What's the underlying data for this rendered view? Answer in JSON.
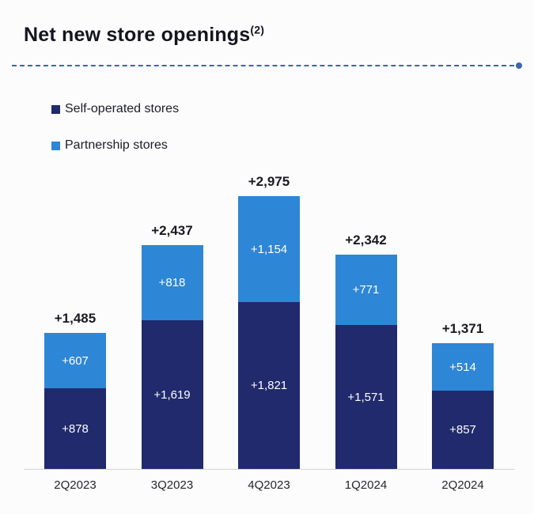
{
  "title": {
    "text": "Net new store openings",
    "superscript": "(2)"
  },
  "legend": [
    {
      "label": "Self-operated stores",
      "color": "#202a6c"
    },
    {
      "label": "Partnership stores",
      "color": "#2e86d6"
    }
  ],
  "colors": {
    "self_operated": "#202a6c",
    "partnership": "#2e86d6",
    "divider_blue": "#3a67a8",
    "background": "#fcfcfc"
  },
  "chart_data": {
    "type": "bar",
    "stacked": true,
    "title": "Net new store openings(2)",
    "xlabel": "",
    "ylabel": "",
    "grid": false,
    "legend_position": "top-left",
    "ylim": [
      0,
      3200
    ],
    "categories": [
      "2Q2023",
      "3Q2023",
      "4Q2023",
      "1Q2024",
      "2Q2024"
    ],
    "series": [
      {
        "name": "Self-operated stores",
        "color": "#202a6c",
        "values": [
          878,
          1619,
          1821,
          1571,
          857
        ],
        "labels": [
          "+878",
          "+1,619",
          "+1,821",
          "+1,571",
          "+857"
        ]
      },
      {
        "name": "Partnership stores",
        "color": "#2e86d6",
        "values": [
          607,
          818,
          1154,
          771,
          514
        ],
        "labels": [
          "+607",
          "+818",
          "+1,154",
          "+771",
          "+514"
        ]
      }
    ],
    "totals": [
      1485,
      2437,
      2975,
      2342,
      1371
    ],
    "total_labels": [
      "+1,485",
      "+2,437",
      "+2,975",
      "+2,342",
      "+1,371"
    ]
  }
}
